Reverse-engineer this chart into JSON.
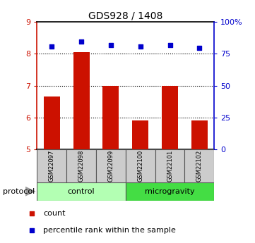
{
  "title": "GDS928 / 1408",
  "samples": [
    "GSM22097",
    "GSM22098",
    "GSM22099",
    "GSM22100",
    "GSM22101",
    "GSM22102"
  ],
  "count_values": [
    6.65,
    8.05,
    7.0,
    5.9,
    7.0,
    5.9
  ],
  "percentile_values": [
    8.23,
    8.38,
    8.28,
    8.22,
    8.27,
    8.18
  ],
  "bar_color": "#cc1100",
  "dot_color": "#0000cc",
  "ylim_left": [
    5,
    9
  ],
  "ylim_right": [
    0,
    100
  ],
  "yticks_left": [
    5,
    6,
    7,
    8,
    9
  ],
  "yticks_right": [
    0,
    25,
    50,
    75,
    100
  ],
  "ytick_labels_right": [
    "0",
    "25",
    "50",
    "75",
    "100%"
  ],
  "grid_lines": [
    6,
    7,
    8
  ],
  "groups": [
    {
      "label": "control",
      "start": 0,
      "end": 3,
      "color": "#b3ffb3"
    },
    {
      "label": "microgravity",
      "start": 3,
      "end": 6,
      "color": "#44dd44"
    }
  ],
  "protocol_label": "protocol",
  "legend_count_label": "count",
  "legend_percentile_label": "percentile rank within the sample",
  "bar_width": 0.55,
  "label_area_color": "#cccccc",
  "label_area_border": "#555555"
}
